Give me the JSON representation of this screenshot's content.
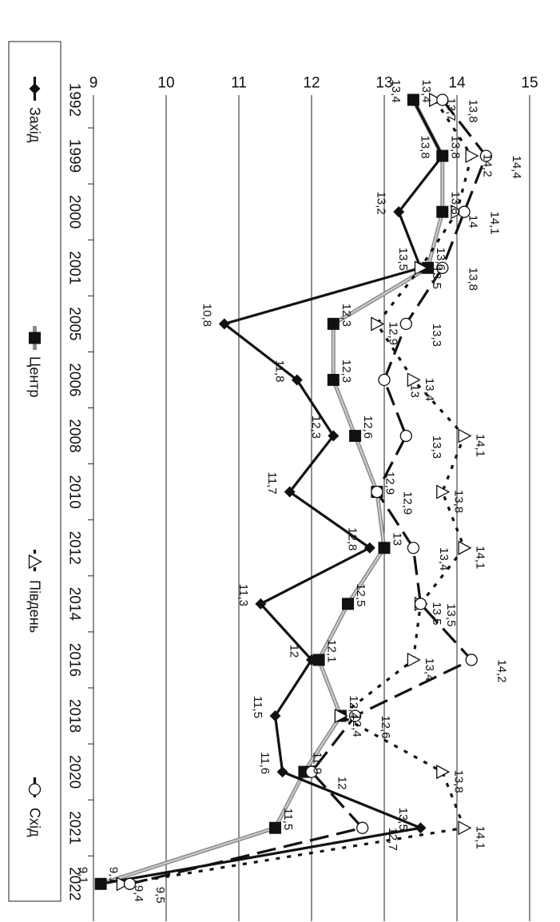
{
  "chart_data": {
    "type": "line",
    "x": [
      "1992",
      "1999",
      "2000",
      "2001",
      "2005",
      "2006",
      "2008",
      "2010",
      "2012",
      "2014",
      "2016",
      "2018",
      "2020",
      "2021",
      "2022"
    ],
    "ylim": [
      9,
      15
    ],
    "yticks": [
      9,
      10,
      11,
      12,
      13,
      14,
      15
    ],
    "grid": true,
    "legend_position": "bottom",
    "orientation": "rotated 90 degrees clockwise",
    "series": [
      {
        "name": "Захід",
        "values": [
          13.4,
          13.8,
          13.2,
          13.5,
          10.8,
          11.8,
          12.3,
          11.7,
          12.8,
          11.3,
          12.0,
          11.5,
          11.6,
          13.5,
          9.1
        ],
        "labels": [
          "13,4",
          "13,8",
          "13,2",
          "13,5",
          "10,8",
          "11,8",
          "12,3",
          "11,7",
          "12,8",
          "11,3",
          "12",
          "11,5",
          "11,6",
          "13,5",
          "9,1"
        ],
        "color": "#111111",
        "line_style": "solid",
        "marker": "diamond"
      },
      {
        "name": "Центр",
        "values": [
          13.4,
          13.8,
          13.8,
          13.6,
          12.3,
          12.3,
          12.6,
          12.9,
          13.0,
          12.5,
          12.1,
          12.4,
          11.9,
          11.5,
          9.1
        ],
        "labels": [
          "13,4",
          "13,8",
          "13,8",
          "13,6",
          "12,3",
          "12,3",
          "12,6",
          "12,9",
          "13",
          "12,5",
          "12,1",
          "12,4",
          "11,9",
          "11,5",
          "9,1"
        ],
        "color": "#888888",
        "line_style": "solid-gray",
        "marker": "square"
      },
      {
        "name": "Південь",
        "values": [
          13.7,
          14.2,
          14.0,
          13.5,
          12.9,
          13.4,
          14.1,
          13.8,
          14.1,
          13.5,
          13.4,
          12.4,
          13.8,
          14.1,
          9.4
        ],
        "labels": [
          "13,7",
          "14,2",
          "14",
          "13,5",
          "12,9",
          "13,4",
          "14,1",
          "13,8",
          "14,1",
          "13,5",
          "13,4",
          "12,4",
          "13,8",
          "14,1",
          "9,4"
        ],
        "color": "#111111",
        "line_style": "dotted",
        "marker": "triangle-open"
      },
      {
        "name": "Схід",
        "values": [
          13.8,
          14.4,
          14.1,
          13.8,
          13.3,
          13.0,
          13.3,
          12.9,
          13.4,
          13.5,
          14.2,
          12.6,
          12.0,
          12.7,
          9.5
        ],
        "labels": [
          "13,8",
          "14,4",
          "14,1",
          "13,8",
          "13,3",
          "13",
          "13,3",
          "12,9",
          "13,4",
          "13,5",
          "14,2",
          "12,6",
          "12",
          "12,7",
          "9,5"
        ],
        "color": "#111111",
        "line_style": "dashed",
        "marker": "circle-open"
      }
    ]
  }
}
